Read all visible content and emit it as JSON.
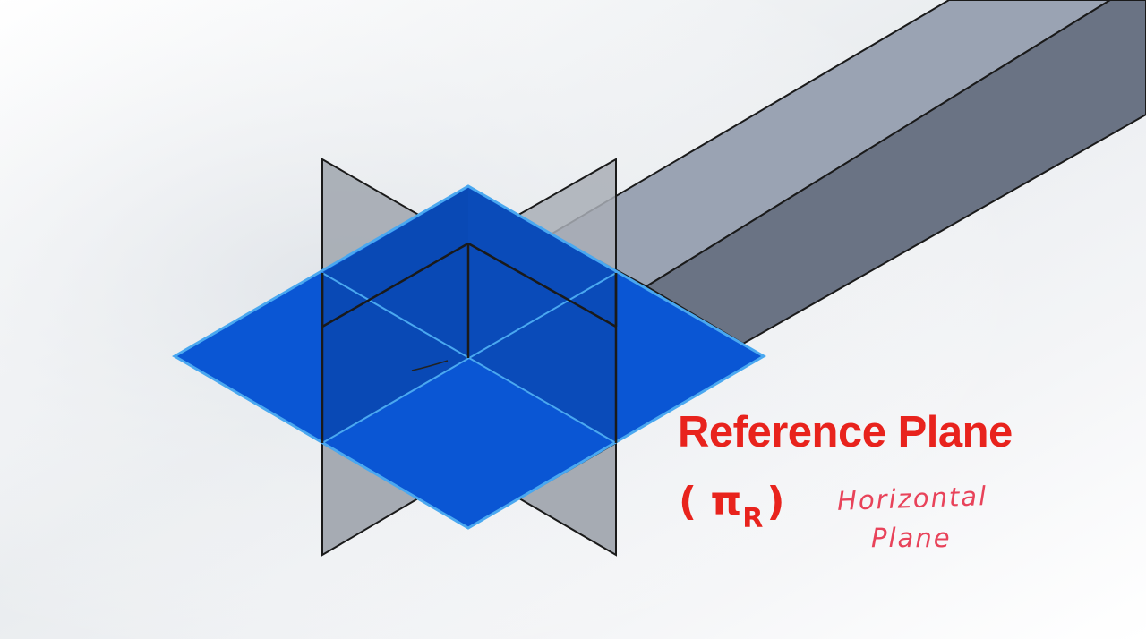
{
  "diagram": {
    "label": {
      "title": "Reference Plane",
      "symbol_open": "( ",
      "symbol_main": "π",
      "symbol_sub": "R",
      "symbol_close": ")",
      "color": "#e8231d"
    },
    "handwritten_note": {
      "line1": "Horizontal",
      "line2": "Plane",
      "color": "#e8435a"
    },
    "colors": {
      "horizontal_plane": "#0a56d4",
      "horizontal_plane_edge": "#4aa8f0",
      "vertical_plane": "#9aa1ab",
      "prism_top": "#9aa3b3",
      "prism_side": "#6a7384",
      "edge": "#1a1a1a"
    }
  }
}
